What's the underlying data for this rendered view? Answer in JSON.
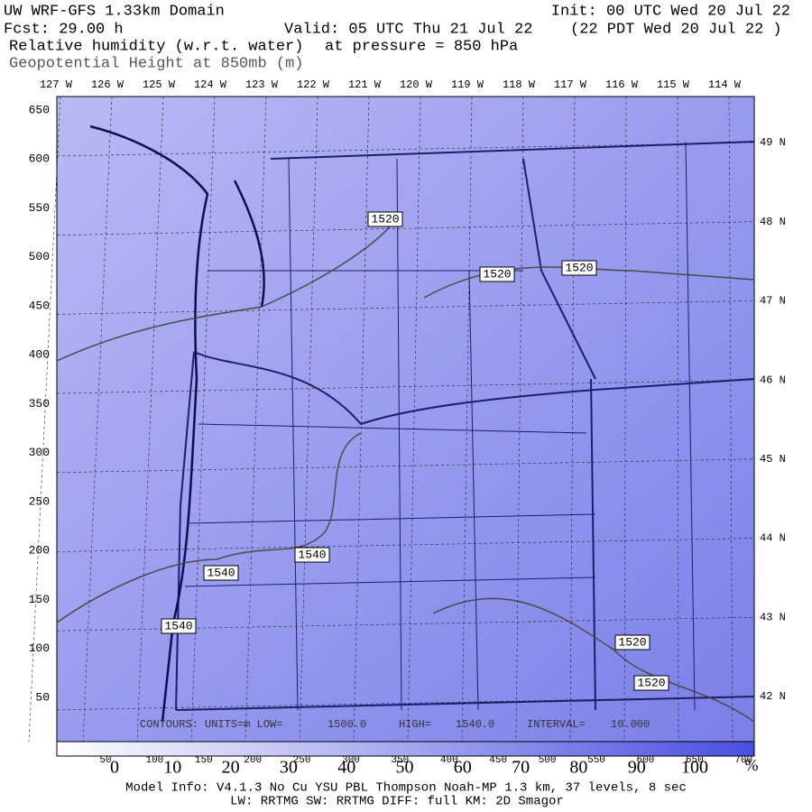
{
  "header": {
    "title": "UW WRF-GFS 1.33km Domain",
    "init": "Init: 00 UTC Wed 20 Jul 22",
    "fcst": "Fcst:    29.00 h",
    "valid": "Valid: 05 UTC Thu 21 Jul 22",
    "local": "(22 PDT Wed 20 Jul 22  )",
    "field": "Relative humidity (w.r.t. water)",
    "pressure": "at pressure =  850 hPa",
    "overlay": "Geopotential Height at 850mb (m)"
  },
  "longitude_labels": [
    "127 W",
    "126 W",
    "125 W",
    "124 W",
    "123 W",
    "122 W",
    "121 W",
    "120 W",
    "119 W",
    "118 W",
    "117 W",
    "116 W",
    "115 W",
    "114 W"
  ],
  "latitude_labels": [
    "49 N",
    "48 N",
    "47 N",
    "46 N",
    "45 N",
    "44 N",
    "43 N",
    "42 N"
  ],
  "grid_labels": [
    "650",
    "600",
    "550",
    "500",
    "450",
    "400",
    "350",
    "300",
    "250",
    "200",
    "150",
    "100",
    "50"
  ],
  "contour_labels": [
    "1520",
    "1520",
    "1520",
    "1540",
    "1540",
    "1540",
    "1520",
    "1520"
  ],
  "contour_info": [
    "CONTOURS:  UNITS=m  LOW=",
    "1500.0",
    "HIGH=",
    "1540.0",
    "INTERVAL=",
    "10.000"
  ],
  "colorbar": {
    "grid_labels": [
      "50",
      "100",
      "150",
      "200",
      "250",
      "300",
      "350",
      "400",
      "450",
      "500",
      "550",
      "600",
      "650",
      "700"
    ],
    "percent_labels": [
      "0",
      "10",
      "20",
      "30",
      "40",
      "50",
      "60",
      "70",
      "80",
      "90",
      "100"
    ],
    "unit": "%"
  },
  "footer": {
    "line1": "Model Info: V4.1.3    No Cu    YSU PBL   Thompson     Noah-MP   1.3 km,  37 levels,    8 sec",
    "line2": "LW: RRTMG  SW: RRTMG    DIFF: full    KM: 2D Smagor"
  }
}
